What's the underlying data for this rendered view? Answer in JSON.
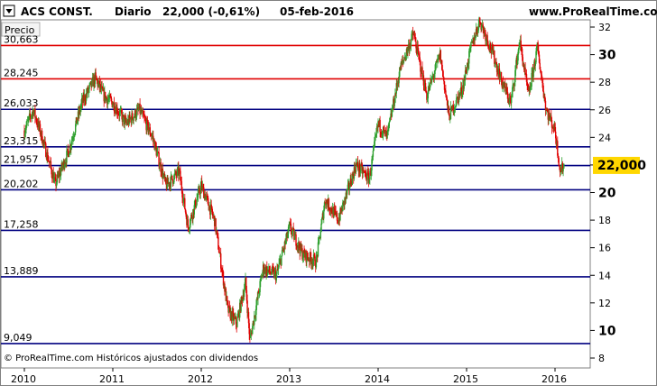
{
  "header": {
    "symbol": "ACS CONST.",
    "period": "Diario",
    "price": "22,000 (-0,61%)",
    "date": "05-feb-2016",
    "site": "www.ProRealTime.com"
  },
  "legend_label": "Precio",
  "footer_text": "© ProRealTime.com  Históricos ajustados con dividendos",
  "colors": {
    "up": "#2ea02e",
    "down": "#e00000",
    "support": "#000080",
    "resistance": "#e00000",
    "price_badge": "#ffd700"
  },
  "chart_data": {
    "type": "candlestick",
    "title": "ACS CONST.",
    "ylim": [
      8,
      34
    ],
    "y_ticks": [
      8,
      10,
      12,
      14,
      16,
      18,
      20,
      22,
      24,
      26,
      28,
      30,
      32,
      34
    ],
    "y_major": [
      10,
      20,
      30
    ],
    "x_ticks": [
      "2010",
      "2011",
      "2012",
      "2013",
      "2014",
      "2015",
      "2016"
    ],
    "last_price": "22,000",
    "levels": [
      {
        "label": "30,663",
        "value": 30.663,
        "kind": "resistance"
      },
      {
        "label": "28,245",
        "value": 28.245,
        "kind": "resistance"
      },
      {
        "label": "26,033",
        "value": 26.033,
        "kind": "support"
      },
      {
        "label": "23,315",
        "value": 23.315,
        "kind": "support"
      },
      {
        "label": "21,957",
        "value": 21.957,
        "kind": "support"
      },
      {
        "label": "20,202",
        "value": 20.202,
        "kind": "support"
      },
      {
        "label": "17,258",
        "value": 17.258,
        "kind": "support"
      },
      {
        "label": "13,889",
        "value": 13.889,
        "kind": "support"
      },
      {
        "label": "9,049",
        "value": 9.049,
        "kind": "support"
      }
    ],
    "price_path": [
      {
        "t": 2010.0,
        "v": 24.5
      },
      {
        "t": 2010.1,
        "v": 26.0
      },
      {
        "t": 2010.2,
        "v": 24.0
      },
      {
        "t": 2010.35,
        "v": 20.6
      },
      {
        "t": 2010.5,
        "v": 23.0
      },
      {
        "t": 2010.65,
        "v": 26.5
      },
      {
        "t": 2010.8,
        "v": 28.3
      },
      {
        "t": 2010.9,
        "v": 27.0
      },
      {
        "t": 2011.0,
        "v": 26.5
      },
      {
        "t": 2011.15,
        "v": 25.0
      },
      {
        "t": 2011.3,
        "v": 26.0
      },
      {
        "t": 2011.45,
        "v": 24.0
      },
      {
        "t": 2011.6,
        "v": 20.5
      },
      {
        "t": 2011.75,
        "v": 21.5
      },
      {
        "t": 2011.85,
        "v": 17.5
      },
      {
        "t": 2012.0,
        "v": 20.5
      },
      {
        "t": 2012.15,
        "v": 18.0
      },
      {
        "t": 2012.3,
        "v": 11.5
      },
      {
        "t": 2012.4,
        "v": 10.5
      },
      {
        "t": 2012.5,
        "v": 13.5
      },
      {
        "t": 2012.55,
        "v": 9.3
      },
      {
        "t": 2012.7,
        "v": 14.5
      },
      {
        "t": 2012.85,
        "v": 14.0
      },
      {
        "t": 2013.0,
        "v": 17.5
      },
      {
        "t": 2013.15,
        "v": 15.5
      },
      {
        "t": 2013.3,
        "v": 15.0
      },
      {
        "t": 2013.4,
        "v": 19.5
      },
      {
        "t": 2013.55,
        "v": 18.0
      },
      {
        "t": 2013.75,
        "v": 22.0
      },
      {
        "t": 2013.9,
        "v": 21.0
      },
      {
        "t": 2014.0,
        "v": 25.0
      },
      {
        "t": 2014.1,
        "v": 24.0
      },
      {
        "t": 2014.25,
        "v": 29.0
      },
      {
        "t": 2014.4,
        "v": 31.5
      },
      {
        "t": 2014.55,
        "v": 27.0
      },
      {
        "t": 2014.7,
        "v": 30.0
      },
      {
        "t": 2014.8,
        "v": 25.5
      },
      {
        "t": 2014.95,
        "v": 27.5
      },
      {
        "t": 2015.05,
        "v": 30.5
      },
      {
        "t": 2015.15,
        "v": 32.5
      },
      {
        "t": 2015.3,
        "v": 30.0
      },
      {
        "t": 2015.4,
        "v": 28.0
      },
      {
        "t": 2015.5,
        "v": 26.5
      },
      {
        "t": 2015.6,
        "v": 31.0
      },
      {
        "t": 2015.7,
        "v": 27.0
      },
      {
        "t": 2015.8,
        "v": 30.5
      },
      {
        "t": 2015.9,
        "v": 26.0
      },
      {
        "t": 2016.0,
        "v": 24.5
      },
      {
        "t": 2016.06,
        "v": 21.5
      },
      {
        "t": 2016.1,
        "v": 22.0
      }
    ]
  }
}
